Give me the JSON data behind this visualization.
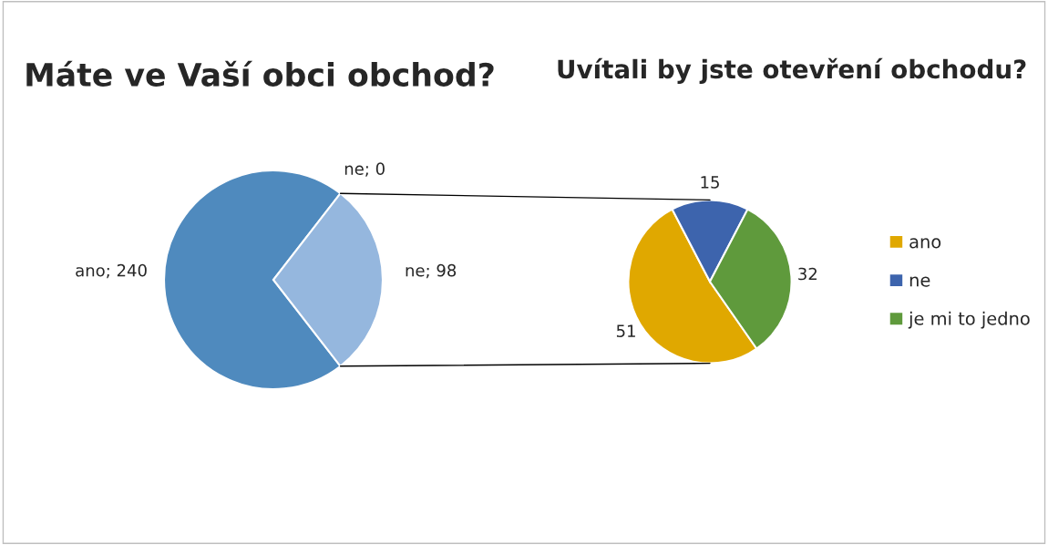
{
  "chart_data": [
    {
      "type": "pie",
      "title": "Máte ve Vaší obci obchod?",
      "categories": [
        "ano",
        "ne"
      ],
      "values": [
        240,
        98
      ],
      "colors": [
        "#4f8abe",
        "#95b7de"
      ],
      "value_labels": [
        "; 240",
        "; 98"
      ],
      "legend": false,
      "annotations": [
        "ne; 0"
      ]
    },
    {
      "type": "pie",
      "title": "Uvítali by jste otevření obchodu?",
      "categories": [
        "ano",
        "ne",
        "je mi to jedno"
      ],
      "values": [
        51,
        15,
        32
      ],
      "colors": [
        "#e0a800",
        "#3d64ad",
        "#5f9a3c"
      ],
      "data_labels": true,
      "legend": "right"
    }
  ]
}
